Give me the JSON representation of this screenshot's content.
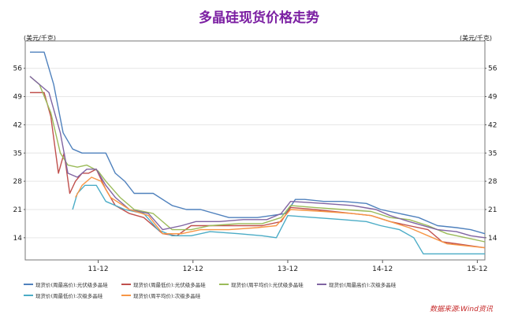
{
  "chart_data": {
    "type": "line",
    "title": "多晶硅现货价格走势",
    "ylabel_left": "(美元/千克)",
    "ylabel_right": "(美元/千克)",
    "source": "数据来源:Wind资讯",
    "x_ticks": [
      "11-12",
      "12-12",
      "13-12",
      "14-12",
      "15-12"
    ],
    "x_tick_positions": [
      2011.92,
      2012.92,
      2013.92,
      2014.92,
      2015.92
    ],
    "x_range": [
      2011.15,
      2016.0
    ],
    "y_ticks": [
      14,
      21,
      28,
      35,
      42,
      49,
      56
    ],
    "y_range": [
      8.5,
      62
    ],
    "grid": true,
    "legend_position": "bottom",
    "series": [
      {
        "name": "现货价(周最高价):光伏级多晶硅",
        "color": "#4f81bd",
        "x": [
          2011.2,
          2011.35,
          2011.45,
          2011.55,
          2011.65,
          2011.75,
          2011.85,
          2012.0,
          2012.1,
          2012.2,
          2012.3,
          2012.5,
          2012.7,
          2012.85,
          2013.0,
          2013.3,
          2013.6,
          2013.9,
          2014.0,
          2014.1,
          2014.3,
          2014.5,
          2014.75,
          2014.9,
          2015.1,
          2015.3,
          2015.5,
          2015.7,
          2015.85,
          2016.0
        ],
        "y": [
          60,
          60,
          52,
          40,
          36,
          35,
          35,
          35,
          30,
          28,
          25,
          25,
          22,
          21,
          21,
          19,
          19,
          20,
          23.5,
          23.5,
          23,
          23,
          22.5,
          21,
          20,
          19,
          17,
          16.5,
          16,
          15
        ]
      },
      {
        "name": "现货价(周最低价):光伏级多晶硅",
        "color": "#c0504d",
        "x": [
          2011.2,
          2011.35,
          2011.42,
          2011.5,
          2011.56,
          2011.62,
          2011.68,
          2011.75,
          2011.82,
          2011.9,
          2012.0,
          2012.1,
          2012.25,
          2012.4,
          2012.6,
          2012.75,
          2012.9,
          2013.0,
          2013.3,
          2013.5,
          2013.65,
          2013.85,
          2013.95,
          2014.2,
          2014.4,
          2014.6,
          2014.8,
          2015.0,
          2015.2,
          2015.4,
          2015.55,
          2015.7,
          2015.85,
          2016.0
        ],
        "y": [
          50,
          50,
          44,
          30,
          35,
          25,
          28,
          30,
          30,
          31,
          26,
          22,
          20,
          19,
          15,
          14.5,
          17,
          17,
          17,
          17,
          17,
          18,
          21.5,
          21,
          20.5,
          20,
          19.5,
          18,
          17,
          16,
          13,
          12.5,
          12,
          11.5
        ]
      },
      {
        "name": "现货价(周平均价):光伏级多晶硅",
        "color": "#9bbb59",
        "x": [
          2011.2,
          2011.3,
          2011.42,
          2011.52,
          2011.6,
          2011.7,
          2011.8,
          2011.92,
          2012.0,
          2012.15,
          2012.3,
          2012.5,
          2012.7,
          2012.9,
          2013.1,
          2013.4,
          2013.65,
          2013.85,
          2013.95,
          2014.2,
          2014.5,
          2014.8,
          2015.0,
          2015.2,
          2015.4,
          2015.6,
          2015.8,
          2016.0
        ],
        "y": [
          54,
          52,
          45,
          35,
          32,
          31.5,
          32,
          30.5,
          28,
          24,
          21,
          20,
          16,
          16,
          17,
          17.5,
          17.5,
          19,
          22,
          21.5,
          21,
          20.5,
          19,
          18.5,
          17,
          15,
          14,
          13
        ]
      },
      {
        "name": "现货价(周最高价):次级多晶硅",
        "color": "#8064a2",
        "x": [
          2011.2,
          2011.4,
          2011.52,
          2011.6,
          2011.7,
          2011.8,
          2011.9,
          2012.0,
          2012.1,
          2012.25,
          2012.45,
          2012.6,
          2012.8,
          2012.95,
          2013.2,
          2013.45,
          2013.7,
          2013.85,
          2013.95,
          2014.3,
          2014.6,
          2014.85,
          2015.0,
          2015.2,
          2015.5,
          2015.7,
          2015.85,
          2016.0
        ],
        "y": [
          54,
          50,
          40,
          30,
          29,
          31,
          31,
          27,
          24,
          21,
          20,
          16,
          17,
          18,
          18,
          18.5,
          18.5,
          20,
          23,
          22.5,
          22,
          21,
          19.5,
          18,
          16,
          15.5,
          14.5,
          14
        ]
      },
      {
        "name": "现货价(周最低价):次级多晶硅",
        "color": "#4bacc6",
        "x": [
          2011.65,
          2011.7,
          2011.78,
          2011.9,
          2012.0,
          2012.2,
          2012.4,
          2012.55,
          2012.7,
          2012.9,
          2013.1,
          2013.4,
          2013.65,
          2013.8,
          2013.92,
          2014.2,
          2014.5,
          2014.75,
          2014.9,
          2015.1,
          2015.25,
          2015.35,
          2015.5,
          2015.7,
          2016.0
        ],
        "y": [
          21,
          25,
          27,
          27,
          23,
          21,
          20,
          16,
          14.5,
          14.5,
          15.5,
          15,
          14.5,
          14,
          19.5,
          19,
          18.5,
          18,
          17,
          16,
          14,
          10,
          10,
          10,
          10
        ]
      },
      {
        "name": "现货价(周平均价):次级多晶硅",
        "color": "#f79646",
        "x": [
          2011.68,
          2011.75,
          2011.85,
          2011.95,
          2012.05,
          2012.25,
          2012.45,
          2012.6,
          2012.8,
          2013.0,
          2013.3,
          2013.6,
          2013.8,
          2013.95,
          2014.3,
          2014.6,
          2014.8,
          2015.0,
          2015.2,
          2015.4,
          2015.6,
          2015.8,
          2016.0
        ],
        "y": [
          24,
          27,
          29,
          28,
          24,
          21,
          19.5,
          15,
          15,
          16,
          16,
          16.5,
          17,
          21,
          20.5,
          20,
          19.5,
          18,
          16.5,
          14.5,
          12.5,
          12,
          11.5
        ]
      }
    ]
  }
}
